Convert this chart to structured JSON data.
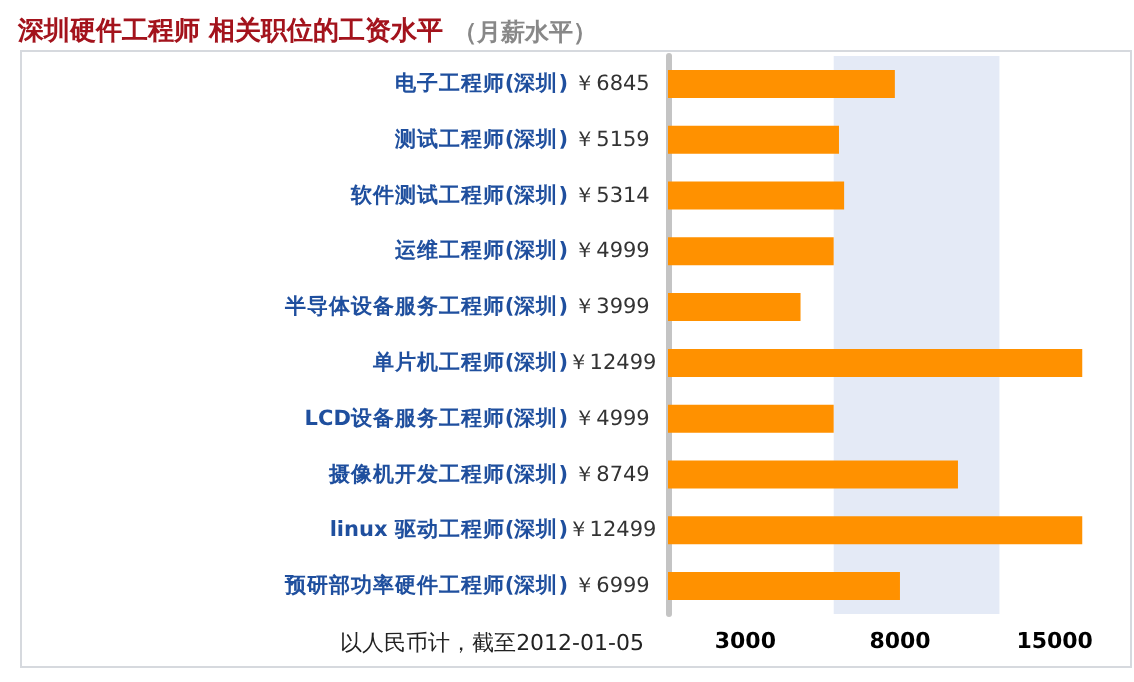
{
  "chart_data": {
    "type": "bar",
    "orientation": "horizontal",
    "title": "深圳硬件工程师 相关职位的工资水平",
    "subtitle": "（月薪水平）",
    "categories": [
      "电子工程师(深圳)",
      "测试工程师(深圳)",
      "软件测试工程师(深圳)",
      "运维工程师(深圳)",
      "半导体设备服务工程师(深圳)",
      "单片机工程师(深圳)",
      "LCD设备服务工程师(深圳)",
      "摄像机开发工程师(深圳)",
      "linux 驱动工程师(深圳)",
      "预研部功率硬件工程师(深圳)"
    ],
    "values": [
      6845,
      5159,
      5314,
      4999,
      3999,
      12499,
      4999,
      8749,
      12499,
      6999
    ],
    "value_labels": [
      "￥6845",
      "￥5159",
      "￥5314",
      "￥4999",
      "￥3999",
      "￥12499",
      "￥4999",
      "￥8749",
      "￥12499",
      "￥6999"
    ],
    "color": "#ff9100",
    "xlim": [
      0,
      14000
    ],
    "tick_labels": "y",
    "bands": [
      {
        "axis": "x",
        "from": 5000,
        "to": 10000,
        "color": "#e4eaf6"
      }
    ],
    "annotations": [
      "以人民币计，截至2012-01-05",
      "3000",
      "8000",
      "15000"
    ],
    "grid": false
  }
}
